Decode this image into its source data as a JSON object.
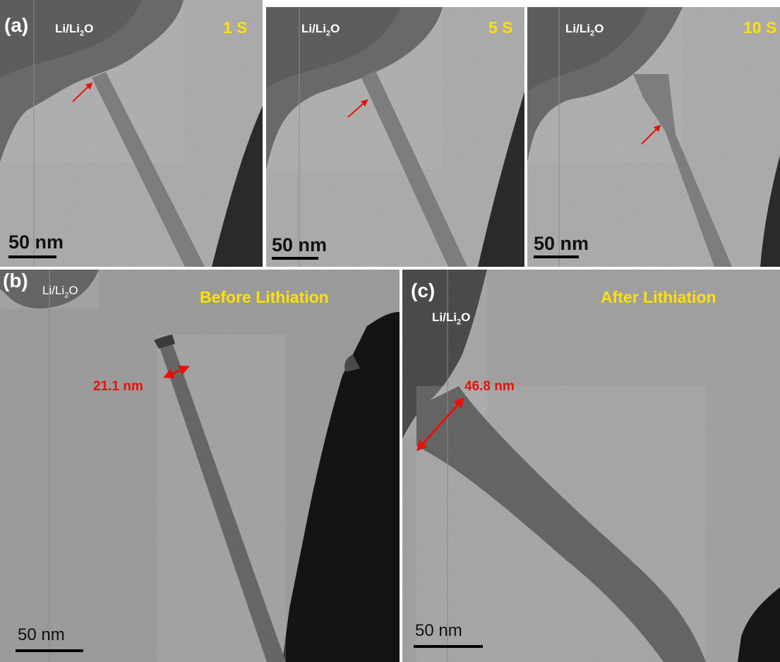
{
  "panels": {
    "a": {
      "letter": "(a)",
      "frames": [
        {
          "electrode": "Li/Li",
          "electrode_sub": "2",
          "electrode_tail": "O",
          "time": "1 S",
          "scale": "50 nm"
        },
        {
          "electrode": "Li/Li",
          "electrode_sub": "2",
          "electrode_tail": "O",
          "time": "5 S",
          "scale": "50 nm"
        },
        {
          "electrode": "Li/Li",
          "electrode_sub": "2",
          "electrode_tail": "O",
          "time": "10 S",
          "scale": "50 nm"
        }
      ]
    },
    "b": {
      "letter": "(b)",
      "electrode": "Li/Li",
      "electrode_sub": "2",
      "electrode_tail": "O",
      "stage": "Before Lithiation",
      "measurement": "21.1 nm",
      "scale": "50 nm"
    },
    "c": {
      "letter": "(c)",
      "electrode": "Li/Li",
      "electrode_sub": "2",
      "electrode_tail": "O",
      "stage": "After Lithiation",
      "measurement": "46.8 nm",
      "scale": "50 nm"
    }
  },
  "colors": {
    "label_yellow": "#ffe100",
    "measure_red": "#e8110c",
    "background_gray": "#a9a9a9"
  }
}
